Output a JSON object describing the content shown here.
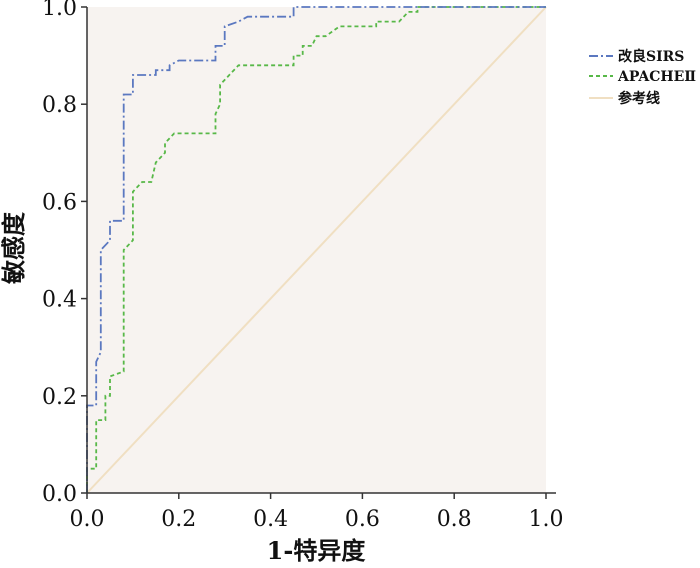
{
  "chart_data": {
    "type": "line",
    "title": "",
    "xlabel": "1-特异度",
    "ylabel": "敏感度",
    "xlim": [
      0,
      1
    ],
    "ylim": [
      0,
      1
    ],
    "x_ticks": [
      "0.0",
      "0.2",
      "0.4",
      "0.6",
      "0.8",
      "1.0"
    ],
    "y_ticks": [
      "0.0",
      "0.2",
      "0.4",
      "0.6",
      "0.8",
      "1.0"
    ],
    "grid": false,
    "legend_position": "top-right outside",
    "plot_background": "#f7f3f0",
    "series": [
      {
        "name": "改良SIRS",
        "color": "#5b78c0",
        "dash": "dashdot",
        "points": [
          [
            0,
            0
          ],
          [
            0,
            0.18
          ],
          [
            0.02,
            0.18
          ],
          [
            0.02,
            0.27
          ],
          [
            0.03,
            0.29
          ],
          [
            0.03,
            0.5
          ],
          [
            0.05,
            0.52
          ],
          [
            0.05,
            0.56
          ],
          [
            0.08,
            0.56
          ],
          [
            0.08,
            0.82
          ],
          [
            0.1,
            0.82
          ],
          [
            0.1,
            0.86
          ],
          [
            0.15,
            0.86
          ],
          [
            0.15,
            0.87
          ],
          [
            0.18,
            0.87
          ],
          [
            0.18,
            0.88
          ],
          [
            0.2,
            0.89
          ],
          [
            0.28,
            0.89
          ],
          [
            0.28,
            0.92
          ],
          [
            0.3,
            0.92
          ],
          [
            0.3,
            0.96
          ],
          [
            0.33,
            0.97
          ],
          [
            0.35,
            0.98
          ],
          [
            0.45,
            0.98
          ],
          [
            0.45,
            1.0
          ],
          [
            1.0,
            1.0
          ]
        ]
      },
      {
        "name": "APACHEⅡ",
        "color": "#58b848",
        "dash": "dashed",
        "points": [
          [
            0,
            0
          ],
          [
            0,
            0.05
          ],
          [
            0.02,
            0.05
          ],
          [
            0.02,
            0.15
          ],
          [
            0.04,
            0.15
          ],
          [
            0.04,
            0.2
          ],
          [
            0.05,
            0.2
          ],
          [
            0.05,
            0.24
          ],
          [
            0.08,
            0.25
          ],
          [
            0.08,
            0.5
          ],
          [
            0.1,
            0.52
          ],
          [
            0.1,
            0.62
          ],
          [
            0.12,
            0.64
          ],
          [
            0.14,
            0.64
          ],
          [
            0.15,
            0.68
          ],
          [
            0.17,
            0.7
          ],
          [
            0.17,
            0.72
          ],
          [
            0.19,
            0.74
          ],
          [
            0.28,
            0.74
          ],
          [
            0.28,
            0.78
          ],
          [
            0.29,
            0.8
          ],
          [
            0.29,
            0.84
          ],
          [
            0.31,
            0.86
          ],
          [
            0.33,
            0.88
          ],
          [
            0.45,
            0.88
          ],
          [
            0.45,
            0.9
          ],
          [
            0.47,
            0.9
          ],
          [
            0.47,
            0.92
          ],
          [
            0.49,
            0.92
          ],
          [
            0.5,
            0.94
          ],
          [
            0.52,
            0.94
          ],
          [
            0.55,
            0.96
          ],
          [
            0.63,
            0.96
          ],
          [
            0.63,
            0.97
          ],
          [
            0.68,
            0.97
          ],
          [
            0.7,
            0.99
          ],
          [
            0.72,
            0.99
          ],
          [
            0.72,
            1.0
          ],
          [
            1.0,
            1.0
          ]
        ]
      },
      {
        "name": "参考线",
        "color": "#f0dfc2",
        "dash": "solid",
        "points": [
          [
            0,
            0
          ],
          [
            1,
            1
          ]
        ]
      }
    ]
  }
}
